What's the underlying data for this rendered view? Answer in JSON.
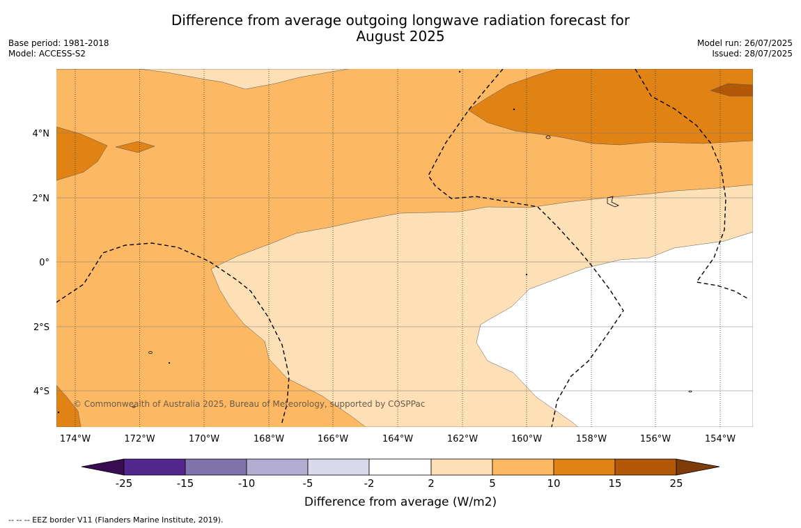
{
  "title": {
    "line1": "Difference from average outgoing longwave radiation forecast for",
    "line2": "August 2025"
  },
  "meta_left": {
    "base_period": "Base period: 1981-2018",
    "model": "Model: ACCESS-S2"
  },
  "meta_right": {
    "model_run": "Model run: 26/07/2025",
    "issued": "Issued: 28/07/2025"
  },
  "map": {
    "lon_labels": [
      "174°W",
      "172°W",
      "170°W",
      "168°W",
      "166°W",
      "164°W",
      "162°W",
      "160°W",
      "158°W",
      "156°W",
      "154°W"
    ],
    "lat_labels": [
      "4°N",
      "2°N",
      "0°",
      "2°S",
      "4°S"
    ],
    "copyright": "© Commonwealth of Australia 2025, Bureau of Meteorology, supported by COSPPac"
  },
  "colorbar": {
    "label": "Difference from average (W/m2)",
    "ticks": [
      "-25",
      "-15",
      "-10",
      "-5",
      "-2",
      "2",
      "5",
      "10",
      "15",
      "25"
    ],
    "colors": {
      "lt_-25": "#3a0c52",
      "-25_-15": "#54278f",
      "-15_-10": "#8073ac",
      "-10_-5": "#b2abd2",
      "-5_-2": "#d8daeb",
      "-2_2": "#ffffff",
      "2_5": "#fee0b6",
      "5_10": "#fdb863",
      "10_15": "#e08214",
      "15_25": "#b35806",
      "gt_25": "#7f3b08"
    }
  },
  "footnote": "--  --  -- EEZ border V11 (Flanders Marine Institute, 2019)."
}
